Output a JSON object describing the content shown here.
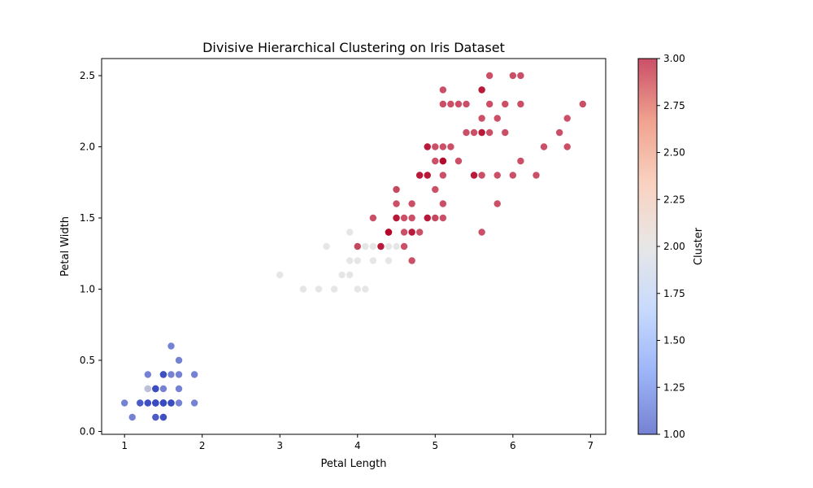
{
  "chart_data": {
    "type": "scatter",
    "title": "Divisive Hierarchical Clustering on Iris Dataset",
    "xlabel": "Petal Length",
    "ylabel": "Petal Width",
    "xlim": [
      0.705,
      7.195
    ],
    "ylim": [
      -0.02,
      2.62
    ],
    "x_ticks": [
      "1",
      "2",
      "3",
      "4",
      "5",
      "6",
      "7"
    ],
    "y_ticks": [
      "0.0",
      "0.5",
      "1.0",
      "1.5",
      "2.0",
      "2.5"
    ],
    "grid": false,
    "colorbar": {
      "label": "Cluster",
      "range": [
        1.0,
        3.0
      ],
      "ticks": [
        "1.00",
        "1.25",
        "1.50",
        "1.75",
        "2.00",
        "2.25",
        "2.50",
        "2.75",
        "3.00"
      ],
      "colormap": "coolwarm",
      "colors": [
        "#3b4cc0",
        "#7396f5",
        "#b0cbfc",
        "#dddcdc",
        "#f6bfa6",
        "#ea7b60",
        "#b40426"
      ]
    },
    "point_opacity": 0.7,
    "series": [
      {
        "cluster": 1,
        "color": "#3b4cc0",
        "points": [
          [
            1.4,
            0.2
          ],
          [
            1.4,
            0.2
          ],
          [
            1.3,
            0.2
          ],
          [
            1.5,
            0.2
          ],
          [
            1.4,
            0.2
          ],
          [
            1.7,
            0.4
          ],
          [
            1.4,
            0.3
          ],
          [
            1.5,
            0.2
          ],
          [
            1.4,
            0.2
          ],
          [
            1.5,
            0.1
          ],
          [
            1.5,
            0.2
          ],
          [
            1.6,
            0.2
          ],
          [
            1.4,
            0.1
          ],
          [
            1.1,
            0.1
          ],
          [
            1.2,
            0.2
          ],
          [
            1.5,
            0.4
          ],
          [
            1.3,
            0.4
          ],
          [
            1.4,
            0.3
          ],
          [
            1.7,
            0.3
          ],
          [
            1.5,
            0.3
          ],
          [
            1.7,
            0.2
          ],
          [
            1.5,
            0.4
          ],
          [
            1.0,
            0.2
          ],
          [
            1.7,
            0.5
          ],
          [
            1.9,
            0.2
          ],
          [
            1.6,
            0.2
          ],
          [
            1.6,
            0.4
          ],
          [
            1.5,
            0.2
          ],
          [
            1.4,
            0.2
          ],
          [
            1.6,
            0.2
          ],
          [
            1.6,
            0.2
          ],
          [
            1.5,
            0.4
          ],
          [
            1.5,
            0.1
          ],
          [
            1.4,
            0.2
          ],
          [
            1.5,
            0.2
          ],
          [
            1.2,
            0.2
          ],
          [
            1.3,
            0.2
          ],
          [
            1.4,
            0.1
          ],
          [
            1.3,
            0.2
          ],
          [
            1.5,
            0.2
          ],
          [
            1.3,
            0.3
          ],
          [
            1.6,
            0.6
          ],
          [
            1.9,
            0.4
          ],
          [
            1.4,
            0.3
          ],
          [
            1.6,
            0.2
          ],
          [
            1.4,
            0.2
          ],
          [
            1.5,
            0.2
          ],
          [
            1.4,
            0.2
          ],
          [
            1.5,
            0.1
          ],
          [
            1.4,
            0.3
          ]
        ]
      },
      {
        "cluster": 2,
        "color": "#dddcdc",
        "points": [
          [
            1.3,
            0.3
          ],
          [
            3.0,
            1.1
          ],
          [
            3.3,
            1.0
          ],
          [
            3.5,
            1.0
          ],
          [
            3.7,
            1.0
          ],
          [
            4.0,
            1.0
          ],
          [
            4.1,
            1.0
          ],
          [
            3.8,
            1.1
          ],
          [
            3.9,
            1.1
          ],
          [
            3.9,
            1.2
          ],
          [
            4.0,
            1.2
          ],
          [
            4.2,
            1.2
          ],
          [
            4.4,
            1.2
          ],
          [
            3.6,
            1.3
          ],
          [
            4.0,
            1.3
          ],
          [
            4.1,
            1.3
          ],
          [
            4.2,
            1.3
          ],
          [
            4.4,
            1.3
          ],
          [
            4.5,
            1.3
          ],
          [
            3.9,
            1.4
          ],
          [
            4.5,
            1.5
          ],
          [
            4.5,
            1.7
          ],
          [
            5.0,
            1.5
          ]
        ]
      },
      {
        "cluster": 3,
        "color": "#b40426",
        "points": [
          [
            4.7,
            1.4
          ],
          [
            4.5,
            1.5
          ],
          [
            4.9,
            1.5
          ],
          [
            4.6,
            1.5
          ],
          [
            4.5,
            1.5
          ],
          [
            4.7,
            1.6
          ],
          [
            4.6,
            1.3
          ],
          [
            4.2,
            1.5
          ],
          [
            4.0,
            1.3
          ],
          [
            4.7,
            1.4
          ],
          [
            4.4,
            1.4
          ],
          [
            4.8,
            1.8
          ],
          [
            4.9,
            1.5
          ],
          [
            4.7,
            1.2
          ],
          [
            4.3,
            1.3
          ],
          [
            4.4,
            1.4
          ],
          [
            4.8,
            1.4
          ],
          [
            5.0,
            1.7
          ],
          [
            5.1,
            1.6
          ],
          [
            4.5,
            1.6
          ],
          [
            4.7,
            1.5
          ],
          [
            4.4,
            1.4
          ],
          [
            4.6,
            1.4
          ],
          [
            6.0,
            2.5
          ],
          [
            5.1,
            1.9
          ],
          [
            5.9,
            2.1
          ],
          [
            5.6,
            1.8
          ],
          [
            5.8,
            2.2
          ],
          [
            6.6,
            2.1
          ],
          [
            4.5,
            1.7
          ],
          [
            6.3,
            1.8
          ],
          [
            5.8,
            1.8
          ],
          [
            6.1,
            2.5
          ],
          [
            5.1,
            2.0
          ],
          [
            5.3,
            1.9
          ],
          [
            5.5,
            2.1
          ],
          [
            5.0,
            2.0
          ],
          [
            5.1,
            2.4
          ],
          [
            5.3,
            2.3
          ],
          [
            5.5,
            1.8
          ],
          [
            6.7,
            2.2
          ],
          [
            6.9,
            2.3
          ],
          [
            5.0,
            1.5
          ],
          [
            5.7,
            2.3
          ],
          [
            4.9,
            2.0
          ],
          [
            6.7,
            2.0
          ],
          [
            4.9,
            1.8
          ],
          [
            5.7,
            2.1
          ],
          [
            6.0,
            1.8
          ],
          [
            4.8,
            1.8
          ],
          [
            4.9,
            1.8
          ],
          [
            5.6,
            2.1
          ],
          [
            5.8,
            1.6
          ],
          [
            6.1,
            1.9
          ],
          [
            6.4,
            2.0
          ],
          [
            5.6,
            2.2
          ],
          [
            5.1,
            1.5
          ],
          [
            5.6,
            1.4
          ],
          [
            6.1,
            2.3
          ],
          [
            5.6,
            2.4
          ],
          [
            5.5,
            1.8
          ],
          [
            5.4,
            2.1
          ],
          [
            5.6,
            2.4
          ],
          [
            5.1,
            2.3
          ],
          [
            5.9,
            2.3
          ],
          [
            5.7,
            2.5
          ],
          [
            5.2,
            2.3
          ],
          [
            5.0,
            1.9
          ],
          [
            5.2,
            2.0
          ],
          [
            5.4,
            2.3
          ],
          [
            5.1,
            1.8
          ],
          [
            5.1,
            1.9
          ],
          [
            4.3,
            1.3
          ],
          [
            4.4,
            1.4
          ],
          [
            4.9,
            2.0
          ],
          [
            5.6,
            2.1
          ],
          [
            5.1,
            1.9
          ]
        ]
      }
    ]
  }
}
